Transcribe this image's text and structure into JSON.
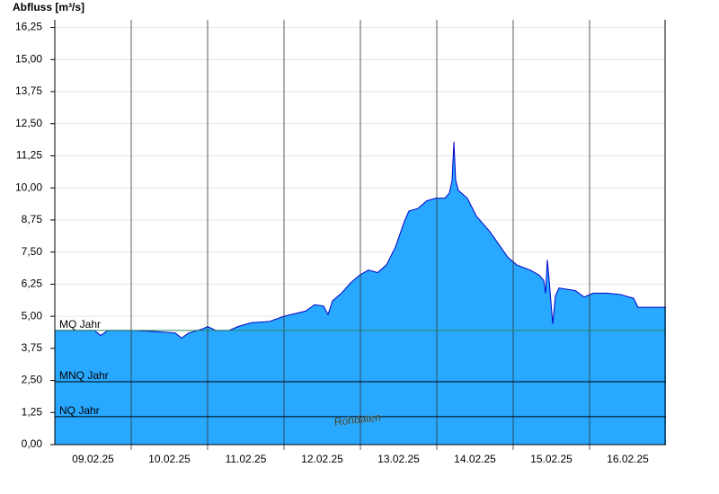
{
  "chart_data": {
    "type": "area",
    "title": "Abfluss [m³/s]",
    "annotation": "Rohdaten",
    "xlim": [
      0,
      8
    ],
    "xticks": [
      {
        "value": 0.5,
        "label": "09.02.25"
      },
      {
        "value": 1.5,
        "label": "10.02.25"
      },
      {
        "value": 2.5,
        "label": "11.02.25"
      },
      {
        "value": 3.5,
        "label": "12.02.25"
      },
      {
        "value": 4.5,
        "label": "13.02.25"
      },
      {
        "value": 5.5,
        "label": "14.02.25"
      },
      {
        "value": 6.5,
        "label": "15.02.25"
      },
      {
        "value": 7.5,
        "label": "16.02.25"
      }
    ],
    "xgrid": [
      1,
      2,
      3,
      4,
      5,
      6,
      7
    ],
    "ylim": [
      0,
      16.55
    ],
    "yticks": [
      {
        "value": 0,
        "label": "0,00"
      },
      {
        "value": 1.25,
        "label": "1,25"
      },
      {
        "value": 2.5,
        "label": "2,50"
      },
      {
        "value": 3.75,
        "label": "3,75"
      },
      {
        "value": 5,
        "label": "5,00"
      },
      {
        "value": 6.25,
        "label": "6,25"
      },
      {
        "value": 7.5,
        "label": "7,50"
      },
      {
        "value": 8.75,
        "label": "8,75"
      },
      {
        "value": 10,
        "label": "10,00"
      },
      {
        "value": 11.25,
        "label": "11,25"
      },
      {
        "value": 12.5,
        "label": "12,50"
      },
      {
        "value": 13.75,
        "label": "13,75"
      },
      {
        "value": 15,
        "label": "15,00"
      },
      {
        "value": 16.25,
        "label": "16,25"
      }
    ],
    "grid": true,
    "fill_color": "#29a8ff",
    "line_color": "#0000cc",
    "x": [
      0,
      0.282,
      0.518,
      0.6,
      0.694,
      1,
      1.341,
      1.576,
      1.659,
      1.753,
      1.929,
      2,
      2.106,
      2.282,
      2.4,
      2.576,
      2.812,
      3,
      3.282,
      3.4,
      3.518,
      3.576,
      3.635,
      3.753,
      3.871,
      3.988,
      4.106,
      4.224,
      4.341,
      4.459,
      4.576,
      4.635,
      4.753,
      4.871,
      4.988,
      5.106,
      5.165,
      5.2,
      5.224,
      5.247,
      5.282,
      5.4,
      5.518,
      5.694,
      5.812,
      5.929,
      6.047,
      6.224,
      6.341,
      6.4,
      6.424,
      6.447,
      6.471,
      6.518,
      6.553,
      6.6,
      6.812,
      6.929,
      7.047,
      7.224,
      7.4,
      7.576,
      7.635,
      8
    ],
    "values": [
      4.45,
      4.45,
      4.45,
      4.25,
      4.45,
      4.45,
      4.4,
      4.35,
      4.15,
      4.35,
      4.5,
      4.6,
      4.45,
      4.45,
      4.6,
      4.75,
      4.8,
      5.0,
      5.2,
      5.45,
      5.4,
      5.07,
      5.6,
      5.9,
      6.3,
      6.6,
      6.8,
      6.7,
      7.0,
      7.7,
      8.7,
      9.1,
      9.2,
      9.5,
      9.6,
      9.6,
      9.8,
      10.3,
      11.8,
      10.3,
      9.9,
      9.6,
      8.9,
      8.3,
      7.8,
      7.3,
      7.0,
      6.8,
      6.6,
      6.4,
      5.9,
      7.2,
      6.4,
      4.7,
      5.8,
      6.1,
      6.0,
      5.75,
      5.9,
      5.9,
      5.85,
      5.7,
      5.35,
      5.35
    ],
    "reference_lines": [
      {
        "name": "MQ Jahr",
        "value": 4.45,
        "color": "#2e8b57"
      },
      {
        "name": "MNQ Jahr",
        "value": 2.45,
        "color": "#000000"
      },
      {
        "name": "NQ Jahr",
        "value": 1.09,
        "color": "#000000"
      }
    ]
  }
}
